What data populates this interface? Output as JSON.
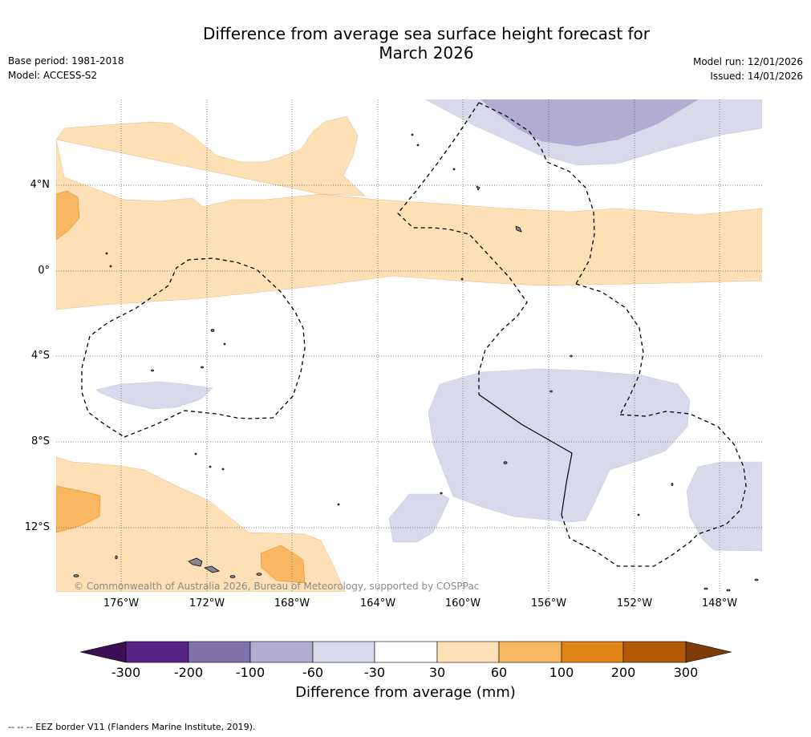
{
  "title": {
    "line1": "Difference from average sea surface height forecast for",
    "line2": "March 2026"
  },
  "meta_left": {
    "base_period": "Base period: 1981-2018",
    "model": "Model: ACCESS-S2"
  },
  "meta_right": {
    "model_run": "Model run: 12/01/2026",
    "issued": "Issued: 14/01/2026"
  },
  "map": {
    "longitude_labels": [
      "176°W",
      "172°W",
      "168°W",
      "164°W",
      "160°W",
      "156°W",
      "152°W",
      "148°W"
    ],
    "latitude_labels": [
      "4°N",
      "0°",
      "4°S",
      "8°S",
      "12°S"
    ],
    "copyright": "© Commonwealth of Australia 2026, Bureau of Meteorology, supported by COSPPac"
  },
  "colorbar": {
    "title": "Difference from average (mm)",
    "tick_labels": [
      "-300",
      "-200",
      "-100",
      "-60",
      "-30",
      "30",
      "60",
      "100",
      "200",
      "300"
    ],
    "colors": [
      "#3b0f55",
      "#562486",
      "#8073ac",
      "#b2abd2",
      "#d8daeb",
      "#ffffff",
      "#fee0b6",
      "#f9b762",
      "#e08416",
      "#b35806",
      "#7f3b08"
    ]
  },
  "legend_note": "--  --  -- EEZ border V11 (Flanders Marine Institute, 2019)."
}
